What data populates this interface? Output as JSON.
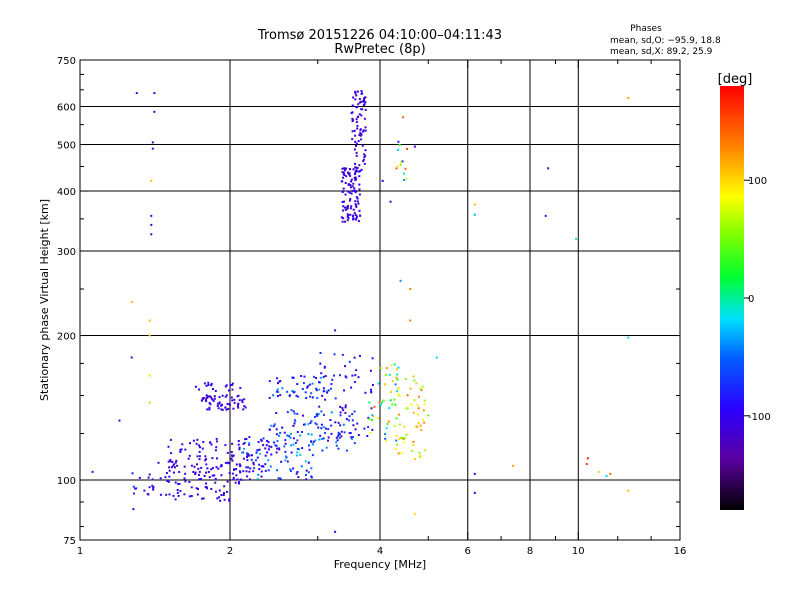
{
  "chart_data": {
    "type": "scatter",
    "title": "Tromsø 20151226 04:10:00–04:11:43",
    "subtitle": "RwPretec (8p)",
    "phases": {
      "heading": "Phases",
      "line_o": "mean, sd,O: −95.9, 18.8",
      "line_x": "mean, sd,X:  89.2, 25.9"
    },
    "xlabel": "Frequency [MHz]",
    "ylabel": "Stationary phase Virtual Height [km]",
    "x_scale": "log",
    "y_scale": "log",
    "xlim": [
      1,
      16
    ],
    "ylim": [
      75,
      750
    ],
    "x_ticks": [
      1,
      2,
      4,
      6,
      8,
      10,
      16
    ],
    "x_tick_labels": [
      "1",
      "2",
      "4",
      "6",
      "8",
      "10",
      "16"
    ],
    "x_grid": [
      2,
      4,
      6,
      8,
      10
    ],
    "y_ticks": [
      75,
      100,
      200,
      300,
      400,
      500,
      600,
      750
    ],
    "y_tick_labels": [
      "75",
      "100",
      "200",
      "300",
      "400",
      "500",
      "600",
      "750"
    ],
    "y_grid": [
      100,
      200,
      300,
      400,
      500,
      600
    ],
    "grid": true,
    "colorbar": {
      "label": "[deg]",
      "range": [
        -180,
        180
      ],
      "ticks": [
        100,
        0,
        -100
      ],
      "tick_labels": [
        "100",
        "0",
        "-100"
      ]
    },
    "clusters": [
      {
        "x": [
          1.25,
          1.4
        ],
        "y": [
          91,
          105
        ],
        "phase": [
          -130,
          -60
        ],
        "n": 14
      },
      {
        "x": [
          1.4,
          1.9
        ],
        "y": [
          91,
          110
        ],
        "phase": [
          -125,
          -85
        ],
        "n": 70
      },
      {
        "x": [
          1.9,
          2.1
        ],
        "y": [
          90,
          112
        ],
        "phase": [
          -120,
          -90
        ],
        "n": 35
      },
      {
        "x": [
          1.5,
          2.4
        ],
        "y": [
          104,
          122
        ],
        "phase": [
          -125,
          -85
        ],
        "n": 90
      },
      {
        "x": [
          2.1,
          3.0
        ],
        "y": [
          100,
          125
        ],
        "phase": [
          -120,
          -20
        ],
        "n": 90
      },
      {
        "x": [
          2.4,
          3.6
        ],
        "y": [
          115,
          140
        ],
        "phase": [
          -120,
          -30
        ],
        "n": 100
      },
      {
        "x": [
          1.75,
          2.15
        ],
        "y": [
          140,
          150
        ],
        "phase": [
          -120,
          -95
        ],
        "n": 60
      },
      {
        "x": [
          1.7,
          2.1
        ],
        "y": [
          150,
          160
        ],
        "phase": [
          -115,
          -90
        ],
        "n": 20
      },
      {
        "x": [
          2.4,
          3.2
        ],
        "y": [
          148,
          165
        ],
        "phase": [
          -120,
          -30
        ],
        "n": 55
      },
      {
        "x": [
          3.0,
          3.9
        ],
        "y": [
          122,
          185
        ],
        "phase": [
          -120,
          -60
        ],
        "n": 60
      },
      {
        "x": [
          3.8,
          4.4
        ],
        "y": [
          120,
          175
        ],
        "phase": [
          -60,
          140
        ],
        "n": 45
      },
      {
        "x": [
          4.3,
          5.0
        ],
        "y": [
          110,
          165
        ],
        "phase": [
          50,
          140
        ],
        "n": 55
      },
      {
        "x": [
          3.35,
          3.65
        ],
        "y": [
          345,
          450
        ],
        "phase": [
          -125,
          -95
        ],
        "n": 110
      },
      {
        "x": [
          3.5,
          3.75
        ],
        "y": [
          440,
          650
        ],
        "phase": [
          -125,
          -95
        ],
        "n": 80
      },
      {
        "x": [
          4.3,
          4.6
        ],
        "y": [
          420,
          510
        ],
        "phase": [
          -110,
          160
        ],
        "n": 12
      }
    ],
    "isolated_points": [
      {
        "x": 1.3,
        "y": 640,
        "phase": -110
      },
      {
        "x": 1.41,
        "y": 640,
        "phase": -110
      },
      {
        "x": 1.41,
        "y": 585,
        "phase": -110
      },
      {
        "x": 1.4,
        "y": 505,
        "phase": -110
      },
      {
        "x": 1.4,
        "y": 490,
        "phase": -110
      },
      {
        "x": 1.39,
        "y": 420,
        "phase": 110
      },
      {
        "x": 1.39,
        "y": 355,
        "phase": -110
      },
      {
        "x": 1.39,
        "y": 340,
        "phase": -110
      },
      {
        "x": 1.39,
        "y": 325,
        "phase": -110
      },
      {
        "x": 1.27,
        "y": 235,
        "phase": 110
      },
      {
        "x": 1.38,
        "y": 215,
        "phase": 110
      },
      {
        "x": 1.38,
        "y": 200,
        "phase": 110
      },
      {
        "x": 1.27,
        "y": 180,
        "phase": -110
      },
      {
        "x": 1.38,
        "y": 165,
        "phase": 70
      },
      {
        "x": 1.38,
        "y": 145,
        "phase": 60
      },
      {
        "x": 1.2,
        "y": 133,
        "phase": -110
      },
      {
        "x": 1.06,
        "y": 104,
        "phase": -110
      },
      {
        "x": 1.28,
        "y": 87,
        "phase": -110
      },
      {
        "x": 4.5,
        "y": 445,
        "phase": 140
      },
      {
        "x": 4.7,
        "y": 495,
        "phase": -110
      },
      {
        "x": 4.05,
        "y": 420,
        "phase": -110
      },
      {
        "x": 4.2,
        "y": 380,
        "phase": -110
      },
      {
        "x": 4.45,
        "y": 570,
        "phase": 140
      },
      {
        "x": 4.4,
        "y": 260,
        "phase": -40
      },
      {
        "x": 4.6,
        "y": 250,
        "phase": 130
      },
      {
        "x": 4.6,
        "y": 215,
        "phase": 130
      },
      {
        "x": 3.25,
        "y": 205,
        "phase": -110
      },
      {
        "x": 5.2,
        "y": 180,
        "phase": -20
      },
      {
        "x": 6.2,
        "y": 375,
        "phase": 110
      },
      {
        "x": 6.2,
        "y": 357,
        "phase": -30
      },
      {
        "x": 6.2,
        "y": 103,
        "phase": -110
      },
      {
        "x": 6.2,
        "y": 94,
        "phase": -110
      },
      {
        "x": 7.4,
        "y": 107,
        "phase": 120
      },
      {
        "x": 8.6,
        "y": 355,
        "phase": -110
      },
      {
        "x": 8.7,
        "y": 446,
        "phase": -110
      },
      {
        "x": 9.9,
        "y": 318,
        "phase": -10
      },
      {
        "x": 10.45,
        "y": 111,
        "phase": 170
      },
      {
        "x": 10.4,
        "y": 108,
        "phase": 160
      },
      {
        "x": 11.0,
        "y": 104,
        "phase": 100
      },
      {
        "x": 11.4,
        "y": 102,
        "phase": -20
      },
      {
        "x": 11.6,
        "y": 103,
        "phase": 140
      },
      {
        "x": 12.6,
        "y": 198,
        "phase": -20
      },
      {
        "x": 12.6,
        "y": 625,
        "phase": 120
      },
      {
        "x": 12.6,
        "y": 95,
        "phase": 110
      },
      {
        "x": 3.25,
        "y": 78,
        "phase": -110
      },
      {
        "x": 4.7,
        "y": 85,
        "phase": 100
      }
    ]
  }
}
